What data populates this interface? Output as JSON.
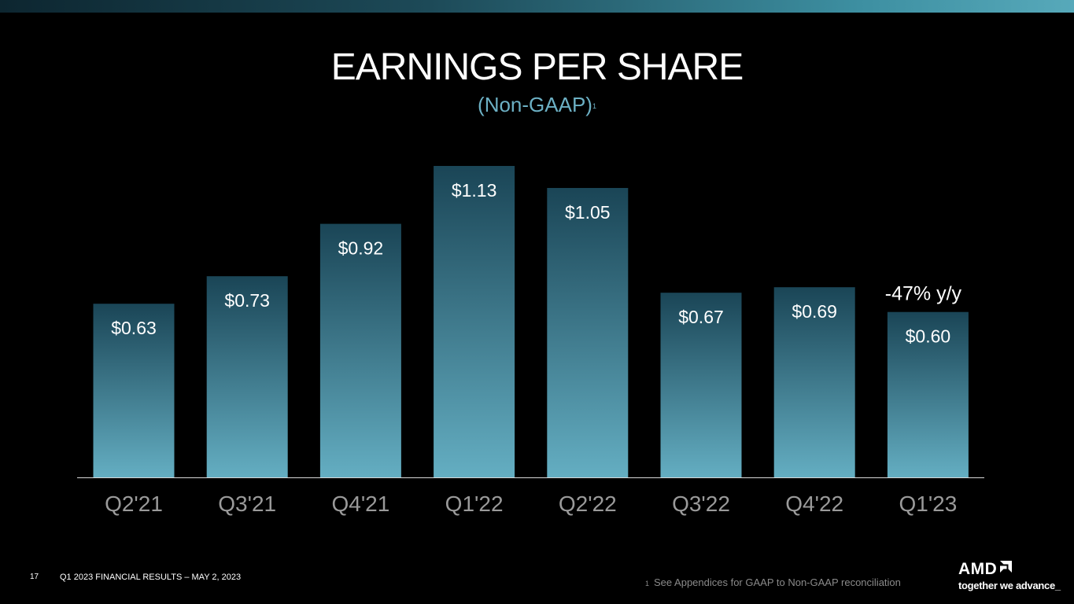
{
  "header": {
    "title": "EARNINGS PER SHARE",
    "subtitle": "(Non-GAAP)",
    "subtitle_footnote_mark": "1"
  },
  "chart_data": {
    "type": "bar",
    "categories": [
      "Q2'21",
      "Q3'21",
      "Q4'21",
      "Q1'22",
      "Q2'22",
      "Q3'22",
      "Q4'22",
      "Q1'23"
    ],
    "values": [
      0.63,
      0.73,
      0.92,
      1.13,
      1.05,
      0.67,
      0.69,
      0.6
    ],
    "labels": [
      "$0.63",
      "$0.73",
      "$0.92",
      "$1.13",
      "$1.05",
      "$0.67",
      "$0.69",
      "$0.60"
    ],
    "annotation": "-47% y/y",
    "annotation_category": "Q1'23",
    "title": "EARNINGS PER SHARE",
    "subtitle": "(Non-GAAP)",
    "xlabel": "",
    "ylabel": "",
    "ylim": [
      0,
      1.13
    ],
    "grid": false,
    "legend": "none",
    "colors": {
      "bar_top": "#1a4556",
      "bar_bottom": "#64aec2",
      "axis": "#d9d9d9",
      "tick_label": "#9a9a9a",
      "value_label": "#ffffff"
    }
  },
  "footer": {
    "page_number": "17",
    "title": "Q1 2023 FINANCIAL RESULTS – MAY 2, 2023",
    "footnote_mark": "1",
    "footnote": "See Appendices for GAAP to Non-GAAP reconciliation"
  },
  "brand": {
    "logo_text": "AMD",
    "logo_icon": "amd-arrow-icon",
    "tagline": "together we advance_"
  },
  "colors": {
    "background": "#000000",
    "subtitle": "#6cb0c4",
    "accent_bar": "#3d8fa1"
  }
}
